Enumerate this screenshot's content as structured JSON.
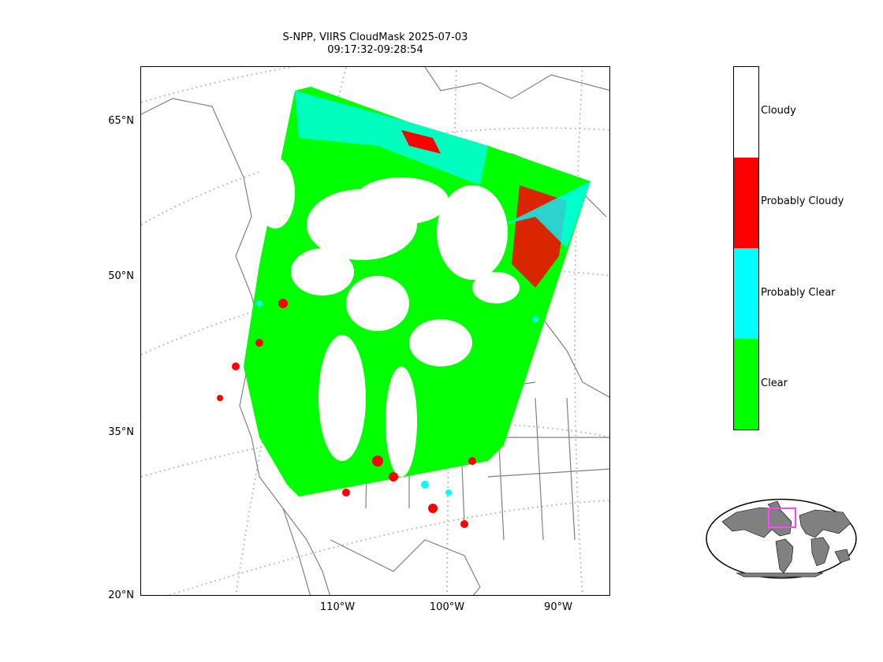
{
  "title": {
    "line1": "S-NPP, VIIRS CloudMask 2025-07-03",
    "line2": "09:17:32-09:28:54"
  },
  "lat_labels": [
    "65°N",
    "50°N",
    "35°N",
    "20°N"
  ],
  "lon_labels": [
    "110°W",
    "100°W",
    "90°W"
  ],
  "colorbar": {
    "categories": [
      {
        "label": "Cloudy",
        "color": "#ffffff"
      },
      {
        "label": "Probably Cloudy",
        "color": "#ff0000"
      },
      {
        "label": "Probably Clear",
        "color": "#00ffff"
      },
      {
        "label": "Clear",
        "color": "#00ff00"
      }
    ]
  },
  "colors": {
    "coastline": "#808080",
    "graticule": "#c0c0c0",
    "land_inset": "#808080",
    "inset_box": "#ff44ff"
  }
}
